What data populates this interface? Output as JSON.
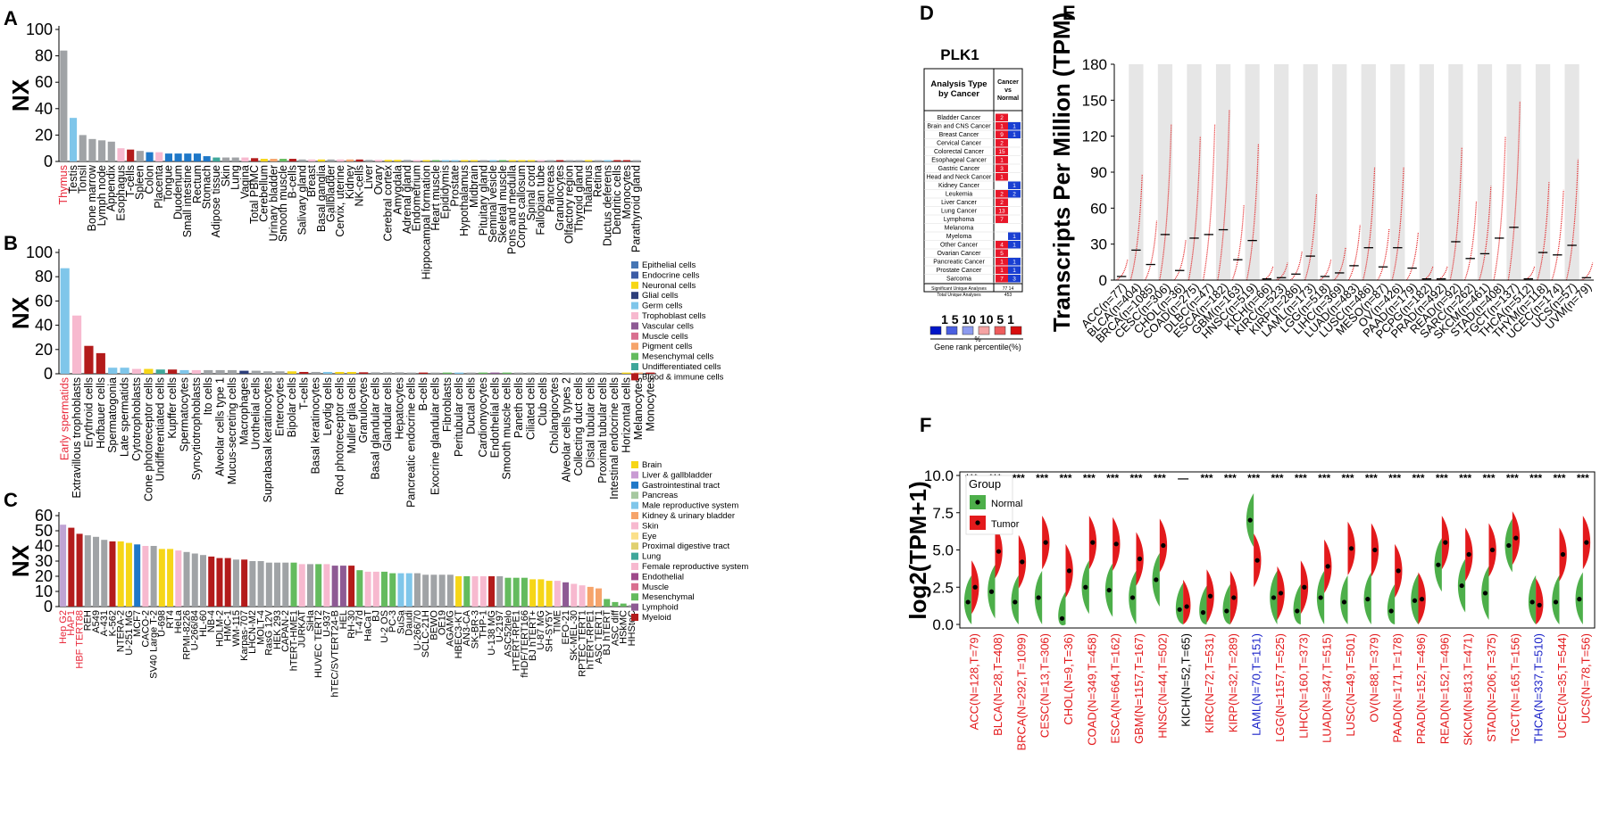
{
  "figure": {
    "colors": {
      "gray": "#a0a3a6",
      "light_gray": "#bfc1c3",
      "red": "#b31b1b",
      "highlight": "#e8283a",
      "blue": "#1f78c8",
      "cyan": "#7fc6ea",
      "pink": "#f7b9cf",
      "green": "#64bb5e",
      "yellow": "#f6d617",
      "orange": "#f6a46b",
      "purple": "#8e5a94",
      "teal": "#3fa79a",
      "navy": "#2c3e7a",
      "violet": "#bfa3d4",
      "tumor": "#e31a1c",
      "normal": "#4daf4a",
      "tcga_red": "#e31a1c",
      "tcga_blue": "#1a22c8",
      "tcga_black": "#000000"
    }
  },
  "chart_data": [
    {
      "panel": "A",
      "type": "bar",
      "ylabel": "NX",
      "ylim": [
        0,
        100
      ],
      "yticks": [
        0,
        20,
        40,
        60,
        80,
        100
      ],
      "categories": [
        "Thymus",
        "Testis",
        "Tonsil",
        "Bone marrow",
        "Lymph node",
        "Appendix",
        "Esophagus",
        "T-cells",
        "Spleen",
        "Colon",
        "Placenta",
        "Tongue",
        "Duodenum",
        "Small intestine",
        "Rectum",
        "Stomach",
        "Adipose tissue",
        "Skin",
        "Lung",
        "Vagina",
        "Total PBMC",
        "Cerebellum",
        "Urinary bladder",
        "Smooth muscle",
        "B-cells",
        "Salivary gland",
        "Breast",
        "Basal ganglia",
        "Gallbladder",
        "Cervix, uterine",
        "Kidney",
        "NK-cells",
        "Liver",
        "Ovary",
        "Cerebral cortex",
        "Amygdala",
        "Adrenal gland",
        "Endometrium",
        "Hippocampal formation",
        "Heart muscle",
        "Epididymis",
        "Prostate",
        "Hypothalamus",
        "Midbrain",
        "Pituitary gland",
        "Seminal vesicle",
        "Skeletal muscle",
        "Pons and medulla",
        "Corpus callosum",
        "Spinal cord",
        "Fallopian tube",
        "Pancreas",
        "Granulocytes",
        "Olfactory region",
        "Thyroid gland",
        "Thalamus",
        "Retina",
        "Ductus deferens",
        "Dendritic cells",
        "Monocytes",
        "Parathyroid gland"
      ],
      "values": [
        84,
        33,
        20,
        17,
        16,
        15,
        10,
        9,
        8,
        7,
        7,
        6,
        6,
        6,
        6,
        4,
        3,
        3,
        3,
        3,
        2.5,
        2,
        2,
        2,
        2,
        1.5,
        1.5,
        1.5,
        1.5,
        1.5,
        1.5,
        1.5,
        1.2,
        1.2,
        1.2,
        1.2,
        1.2,
        1,
        1,
        1,
        1,
        1,
        1,
        1,
        1,
        1,
        1,
        1,
        1,
        1,
        1,
        1,
        1,
        1,
        1,
        1,
        1,
        1,
        1,
        1,
        1
      ],
      "colors": [
        "gray",
        "cyan",
        "gray",
        "gray",
        "gray",
        "gray",
        "pink",
        "red",
        "gray",
        "blue",
        "pink",
        "blue",
        "blue",
        "blue",
        "blue",
        "blue",
        "teal",
        "gray",
        "gray",
        "pink",
        "red",
        "yellow",
        "orange",
        "green",
        "red",
        "gray",
        "pink",
        "yellow",
        "gray",
        "pink",
        "orange",
        "red",
        "gray",
        "pink",
        "yellow",
        "yellow",
        "gray",
        "pink",
        "yellow",
        "green",
        "cyan",
        "cyan",
        "yellow",
        "yellow",
        "gray",
        "cyan",
        "green",
        "yellow",
        "yellow",
        "yellow",
        "pink",
        "gray",
        "red",
        "gray",
        "gray",
        "yellow",
        "gray",
        "cyan",
        "red",
        "red",
        "gray"
      ],
      "highlight_index": 0
    },
    {
      "panel": "B",
      "type": "bar",
      "ylabel": "NX",
      "ylim": [
        0,
        100
      ],
      "yticks": [
        0,
        20,
        40,
        60,
        80,
        100
      ],
      "categories": [
        "Early spermatids",
        "Extravillous trophoblasts",
        "Erythroid cells",
        "Hofbauer cells",
        "Spermatogonia",
        "Late spermatids",
        "Cytotrophoblasts",
        "Cone photoreceptor cells",
        "Undifferentiated cells",
        "Kupffer cells",
        "Spermatocytes",
        "Syncytiotrophoblasts",
        "Ito cells",
        "Alveolar cells type 1",
        "Mucus-secreting cells",
        "Macrophages",
        "Urothelial cells",
        "Suprabasal keratinocytes",
        "Enterocytes",
        "Bipolar cells",
        "T-cells",
        "Basal keratinocytes",
        "Leydig cells",
        "Rod photoreceptor cells",
        "Muller glia cells",
        "Granulocytes",
        "Basal glandular cells",
        "Glandular cells",
        "Hepatocytes",
        "Pancreatic endocrine cells",
        "B-cells",
        "Exocrine glandular cells",
        "Fibroblasts",
        "Peritubular cells",
        "Ductal cells",
        "Cardiomyocytes",
        "Endothelial cells",
        "Smooth muscle cells",
        "Paneth cells",
        "Ciliated cells",
        "Club cells",
        "Cholangiocytes",
        "Alveolar cells types 2",
        "Collecting duct cells",
        "Distal tubular cells",
        "Proximal tubular cells",
        "Intestinal endocrine cells",
        "Horizontal cells",
        "Melanocytes",
        "Monocytes"
      ],
      "values": [
        87,
        48,
        23,
        17,
        5,
        5,
        4,
        4,
        3.5,
        3.5,
        3,
        3,
        3,
        3,
        3,
        2.5,
        2.5,
        2,
        2,
        2,
        1.5,
        1.5,
        1.5,
        1.5,
        1.5,
        1.2,
        1.2,
        1.2,
        1.2,
        1,
        1,
        1,
        1,
        1,
        1,
        1,
        1,
        1,
        1,
        1,
        1,
        1,
        1,
        1,
        1,
        1,
        1,
        1,
        1,
        1
      ],
      "colors": [
        "cyan",
        "pink",
        "red",
        "red",
        "cyan",
        "cyan",
        "pink",
        "yellow",
        "teal",
        "red",
        "cyan",
        "pink",
        "gray",
        "gray",
        "gray",
        "navy",
        "gray",
        "gray",
        "gray",
        "yellow",
        "red",
        "gray",
        "cyan",
        "yellow",
        "yellow",
        "red",
        "gray",
        "gray",
        "gray",
        "gray",
        "red",
        "gray",
        "green",
        "cyan",
        "gray",
        "green",
        "purple",
        "green",
        "gray",
        "gray",
        "gray",
        "gray",
        "gray",
        "gray",
        "gray",
        "gray",
        "gray",
        "yellow",
        "orange",
        "red"
      ],
      "highlight_index": 0,
      "legend": [
        "Epithelial cells",
        "Endocrine cells",
        "Neuronal cells",
        "Glial cells",
        "Germ cells",
        "Trophoblast cells",
        "Vascular cells",
        "Muscle cells",
        "Pigment cells",
        "Mesenchymal cells",
        "Undifferentiated cells",
        "Blood & immune cells"
      ],
      "legend_colors": [
        "#4575b4",
        "#3b5ba5",
        "#f6d617",
        "#2c3e7a",
        "#7fc6ea",
        "#f7b9cf",
        "#8e5a94",
        "#d96f8f",
        "#f6a46b",
        "#64bb5e",
        "#3fa79a",
        "#b31b1b"
      ]
    },
    {
      "panel": "C",
      "type": "bar",
      "ylabel": "NX",
      "ylim": [
        0,
        60
      ],
      "yticks": [
        0,
        10,
        20,
        30,
        40,
        50,
        60
      ],
      "categories": [
        "Hep G2",
        "HAP1",
        "HBF TERT88",
        "REH",
        "A549",
        "A-431",
        "K-562",
        "NTERA-2",
        "U-251 MG",
        "MCF7",
        "CACO-2",
        "SV40 Large T-2",
        "U-698",
        "RT4",
        "HeLa",
        "RPMI-8226",
        "U-266/84",
        "HL-60",
        "NB-4",
        "HDLM-2",
        "HMC-1",
        "WM-115",
        "Karpas-707",
        "LHCN-M2",
        "MOLT-4",
        "RasG 12V",
        "HEK 293",
        "CAPAN-2",
        "hTERT-HME1",
        "JURKAT",
        "SiHa",
        "HUVEC TERT2",
        "U-937",
        "hTEC/SVTERT24-B",
        "HEL",
        "RH-30",
        "T-47d",
        "HaCaT",
        "BJ",
        "U-2 OS",
        "PC-3",
        "SuSa",
        "Daudi",
        "U-266/70",
        "SCLC-21H",
        "BEWO",
        "OE19",
        "AGAMG",
        "HBEC3-KT",
        "AN3-CA",
        "SK-BR-3",
        "THP-1",
        "U-138 MG",
        "U-2197",
        "ASC52telo",
        "HTERT-RPE1",
        "fHDF/TERT166",
        "BJ hTERT+",
        "U-87 MG",
        "SH-SY5Y",
        "TIME",
        "EFO-21",
        "SK-MEL-30",
        "RPTEC TERT1",
        "hTERT-RPE1",
        "ASC TERT1",
        "BJ hTERT",
        "ASC diff",
        "HSkMC",
        "HHSteC"
      ],
      "values": [
        54,
        52,
        48,
        47,
        46,
        44,
        43,
        43,
        42,
        41,
        40,
        40,
        38,
        38,
        37,
        36,
        35,
        34,
        33,
        32,
        32,
        31,
        31,
        30,
        30,
        29,
        29,
        29,
        29,
        28,
        28,
        28,
        28,
        27,
        27,
        27,
        24,
        23,
        23,
        23,
        22,
        22,
        22,
        22,
        21,
        21,
        21,
        21,
        20,
        20,
        20,
        20,
        20,
        20,
        19,
        19,
        19,
        18,
        18,
        17,
        17,
        16,
        15,
        14,
        13,
        12,
        5,
        3,
        2,
        1
      ],
      "colors": [
        "violet",
        "red",
        "red",
        "gray",
        "gray",
        "gray",
        "red",
        "yellow",
        "yellow",
        "blue",
        "pink",
        "gray",
        "yellow",
        "yellow",
        "pink",
        "gray",
        "gray",
        "gray",
        "red",
        "red",
        "red",
        "gray",
        "red",
        "gray",
        "gray",
        "gray",
        "gray",
        "gray",
        "green",
        "pink",
        "gray",
        "green",
        "pink",
        "purple",
        "purple",
        "red",
        "green",
        "pink",
        "pink",
        "green",
        "green",
        "cyan",
        "cyan",
        "gray",
        "gray",
        "gray",
        "gray",
        "gray",
        "yellow",
        "green",
        "pink",
        "pink",
        "red",
        "gray",
        "green",
        "green",
        "green",
        "yellow",
        "yellow",
        "yellow",
        "pink",
        "purple",
        "pink",
        "pink",
        "orange",
        "orange",
        "green",
        "green",
        "green",
        "gray"
      ],
      "highlight_indices": [
        0,
        1,
        2
      ],
      "legend": [
        "Brain",
        "Liver & gallbladder",
        "Gastrointestinal tract",
        "Pancreas",
        "Male reproductive system",
        "Kidney & urinary bladder",
        "Skin",
        "Eye",
        "Proximal digestive tract",
        "Lung",
        "Female reproductive system",
        "Endothelial",
        "Muscle",
        "Mesenchymal",
        "Lymphoid",
        "Myeloid"
      ],
      "legend_colors": [
        "#f6d617",
        "#c99bd3",
        "#1f78c8",
        "#a6c8a0",
        "#7fc6ea",
        "#f6a46b",
        "#f7b9cf",
        "#fbe08a",
        "#e0d070",
        "#3fa79a",
        "#f7b9cf",
        "#9e4a8a",
        "#d96f8f",
        "#64bb5e",
        "#8e5a94",
        "#b31b1b"
      ]
    },
    {
      "panel": "D",
      "type": "table",
      "title": "PLK1",
      "header_left": "Analysis Type by Cancer",
      "header_right": "Cancer vs Normal",
      "rows": [
        "Bladder Cancer",
        "Brain and CNS Cancer",
        "Breast Cancer",
        "Cervical Cancer",
        "Colorectal Cancer",
        "Esophageal Cancer",
        "Gastric Cancer",
        "Head and Neck Cancer",
        "Kidney Cancer",
        "Leukemia",
        "Liver Cancer",
        "Lung Cancer",
        "Lymphoma",
        "Melanoma",
        "Myeloma",
        "Other Cancer",
        "Ovarian Cancer",
        "Pancreatic Cancer",
        "Prostate Cancer",
        "Sarcoma"
      ],
      "up_counts": [
        "2",
        "1",
        "9",
        "2",
        "15",
        "1",
        "3",
        "1",
        "",
        "2",
        "2",
        "13",
        "7",
        "",
        "",
        "4",
        "5",
        "1",
        "1",
        "7"
      ],
      "down_counts": [
        "",
        "1",
        "1",
        "",
        "",
        "",
        "",
        "",
        "1",
        "2",
        "",
        "",
        "",
        "",
        "1",
        "1",
        "",
        "1",
        "1",
        "3"
      ],
      "footer_rows": [
        "Significant Unique Analyses",
        "Total Unique Analyses"
      ],
      "footer_values": [
        "77  14",
        "453"
      ],
      "legend_numbers": "1  5 10   10 5  1",
      "legend_percent": "%",
      "legend_caption": "Gene rank percentile(%)"
    },
    {
      "panel": "E",
      "type": "scatter",
      "ylabel": "Transcripts Per Million (TPM)",
      "ylim": [
        0,
        180
      ],
      "yticks": [
        0,
        30,
        60,
        90,
        120,
        150,
        180
      ],
      "categories": [
        "ACC(n=77)",
        "BLCA(n=404)",
        "BRCA(n=1085)",
        "CESC(n=306)",
        "CHOL(n=36)",
        "COAD(n=275)",
        "DLBC(n=47)",
        "ESCA(n=182)",
        "GBM(n=163)",
        "HNSC(n=519)",
        "KICH(n=66)",
        "KIRC(n=523)",
        "KIRP(n=286)",
        "LAML(n=173)",
        "LGG(n=518)",
        "LIHC(n=369)",
        "LUAD(n=483)",
        "LUSC(n=486)",
        "MESO(n=87)",
        "OV(n=426)",
        "PAAD(n=179)",
        "PCPG(n=182)",
        "PRAD(n=492)",
        "READ(n=92)",
        "SARC(n=262)",
        "SKCM(n=461)",
        "STAD(n=408)",
        "TGCT(n=137)",
        "THCA(n=512)",
        "THYM(n=118)",
        "UCEC(n=174)",
        "UCS(n=57)",
        "UVM(n=79)"
      ],
      "medians": [
        3,
        25,
        13,
        38,
        8,
        35,
        38,
        42,
        17,
        33,
        1,
        2,
        5,
        20,
        3,
        6,
        12,
        27,
        11,
        27,
        10,
        1,
        1,
        32,
        18,
        22,
        35,
        44,
        1,
        23,
        21,
        29,
        2
      ]
    },
    {
      "panel": "F",
      "type": "violin",
      "ylabel": "log2(TPM+1)",
      "ylim": [
        0,
        10
      ],
      "yticks": [
        "0.0",
        "2.5",
        "5.0",
        "7.5",
        "10.0"
      ],
      "legend_title": "Group",
      "legend": [
        "Normal",
        "Tumor"
      ],
      "categories": [
        "ACC(N=128,T=79)",
        "BLCA(N=28,T=408)",
        "BRCA(N=292,T=1099)",
        "CESC(N=13,T=306)",
        "CHOL(N=9,T=36)",
        "COAD(N=349,T=458)",
        "ESCA(N=664,T=162)",
        "GBM(N=1157,T=167)",
        "HNSC(N=44,T=502)",
        "KICH(N=52,T=65)",
        "KIRC(N=72,T=531)",
        "KIRP(N=32,T=289)",
        "LAML(N=70,T=151)",
        "LGG(N=1157,T=525)",
        "LIHC(N=160,T=373)",
        "LUAD(N=347,T=515)",
        "LUSC(N=49,T=501)",
        "OV(N=88,T=379)",
        "PAAD(N=171,T=178)",
        "PRAD(N=152,T=496)",
        "READ(N=152,T=496)",
        "SKCM(N=813,T=471)",
        "STAD(N=206,T=375)",
        "TGCT(N=165,T=156)",
        "THCA(N=337,T=510)",
        "UCEC(N=35,T=544)",
        "UCS(N=78,T=56)"
      ],
      "label_colors": [
        "red",
        "red",
        "red",
        "red",
        "red",
        "red",
        "red",
        "red",
        "red",
        "black",
        "red",
        "red",
        "blue",
        "red",
        "red",
        "red",
        "red",
        "red",
        "red",
        "red",
        "red",
        "red",
        "red",
        "red",
        "blue",
        "red",
        "red"
      ],
      "significance": [
        "***",
        "***",
        "***",
        "***",
        "***",
        "***",
        "***",
        "***",
        "***",
        "—",
        "***",
        "***",
        "***",
        "***",
        "***",
        "***",
        "***",
        "***",
        "***",
        "***",
        "***",
        "***",
        "***",
        "***",
        "***",
        "***",
        "***"
      ],
      "normal_medians": [
        1.5,
        2.2,
        1.5,
        1.8,
        0.4,
        2.5,
        2.3,
        1.8,
        3.0,
        1.0,
        0.8,
        0.9,
        7.0,
        1.8,
        0.9,
        1.8,
        1.5,
        1.7,
        0.9,
        1.6,
        4.0,
        2.6,
        2.1,
        5.3,
        1.5,
        1.5,
        1.7
      ],
      "tumor_medians": [
        2.5,
        4.9,
        4.2,
        5.5,
        3.6,
        5.5,
        5.4,
        4.4,
        5.3,
        1.2,
        1.9,
        1.8,
        4.3,
        2.1,
        2.5,
        3.9,
        5.1,
        5.0,
        3.6,
        1.7,
        5.5,
        4.7,
        5.0,
        5.8,
        1.3,
        4.7,
        5.5
      ]
    }
  ],
  "panels": {
    "a": "A",
    "b": "B",
    "c": "C",
    "d": "D",
    "e": "E",
    "f": "F"
  }
}
